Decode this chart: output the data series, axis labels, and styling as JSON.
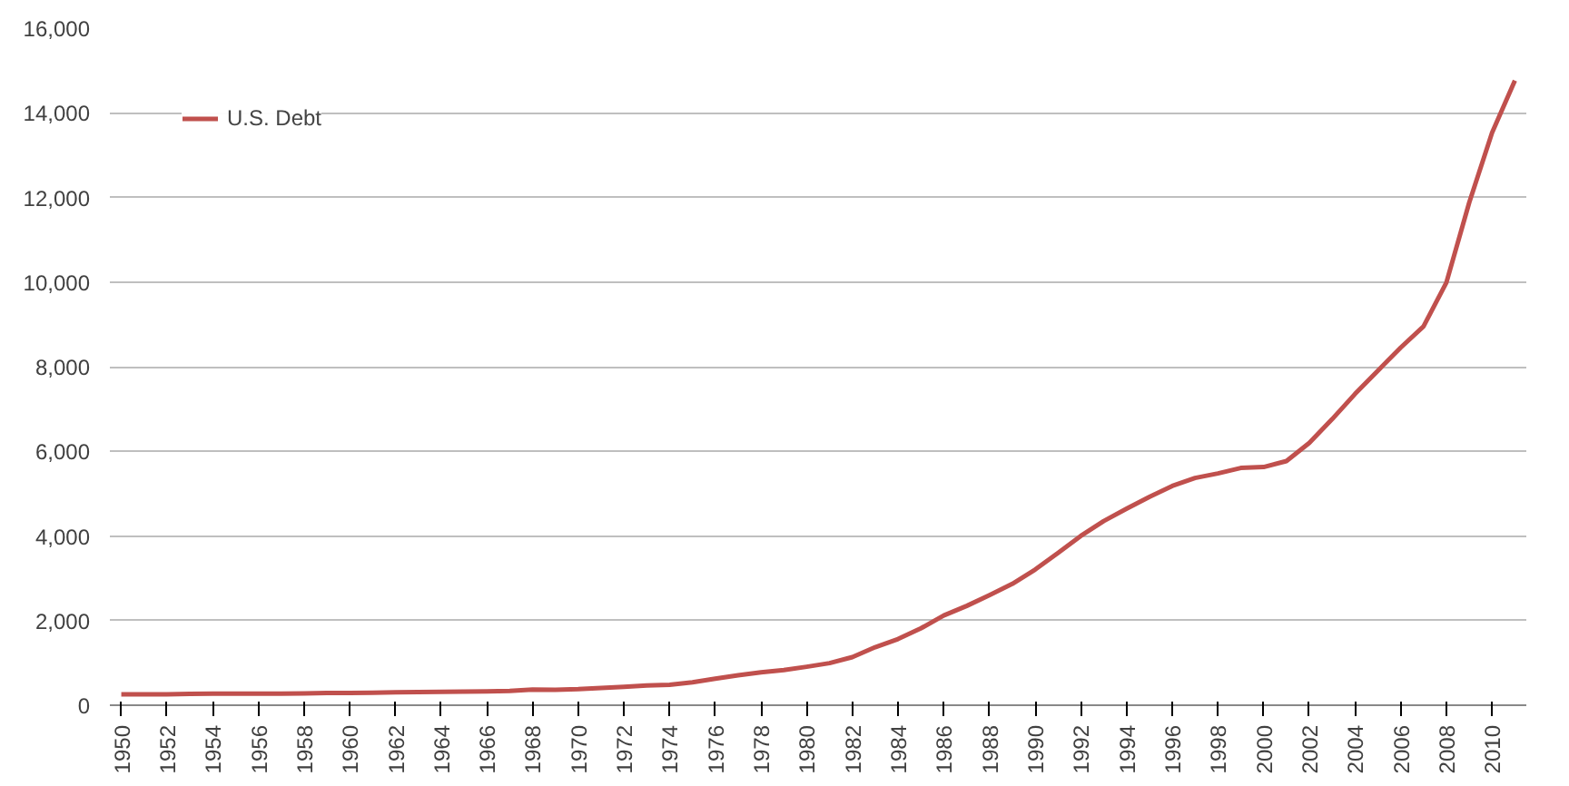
{
  "chart_data": {
    "type": "line",
    "legend": "top left",
    "grid": "y",
    "line_style": "solid",
    "marker": "none",
    "x": [
      1950,
      1951,
      1952,
      1953,
      1954,
      1955,
      1956,
      1957,
      1958,
      1959,
      1960,
      1961,
      1962,
      1963,
      1964,
      1965,
      1966,
      1967,
      1968,
      1969,
      1970,
      1971,
      1972,
      1973,
      1974,
      1975,
      1976,
      1977,
      1978,
      1979,
      1980,
      1981,
      1982,
      1983,
      1984,
      1985,
      1986,
      1987,
      1988,
      1989,
      1990,
      1991,
      1992,
      1993,
      1994,
      1995,
      1996,
      1997,
      1998,
      1999,
      2000,
      2001,
      2002,
      2003,
      2004,
      2005,
      2006,
      2007,
      2008,
      2009,
      2010,
      2011
    ],
    "series": [
      {
        "name": "U.S. Debt",
        "color": "#c0504d",
        "values": [
          257,
          255,
          259,
          266,
          271,
          274,
          273,
          272,
          280,
          287,
          290,
          293,
          303,
          310,
          316,
          322,
          328,
          340,
          368,
          366,
          381,
          408,
          436,
          466,
          484,
          542,
          629,
          706,
          777,
          829,
          909,
          994,
          1137,
          1371,
          1564,
          1817,
          2120,
          2346,
          2601,
          2868,
          3206,
          3598,
          4001,
          4351,
          4643,
          4921,
          5181,
          5369,
          5478,
          5606,
          5629,
          5770,
          6198,
          6760,
          7355,
          7905,
          8451,
          8951,
          9986,
          11876,
          13529,
          14764
        ]
      }
    ],
    "xlim": [
      1949.5,
      2011.5
    ],
    "xticks": [
      1950,
      1952,
      1954,
      1956,
      1958,
      1960,
      1962,
      1964,
      1966,
      1968,
      1970,
      1972,
      1974,
      1976,
      1978,
      1980,
      1982,
      1984,
      1986,
      1988,
      1990,
      1992,
      1994,
      1996,
      1998,
      2000,
      2002,
      2004,
      2006,
      2008,
      2010
    ],
    "ylim": [
      0,
      16000
    ],
    "yticks": [
      {
        "value": 0,
        "label": "0"
      },
      {
        "value": 2000,
        "label": "2,000"
      },
      {
        "value": 4000,
        "label": "4,000"
      },
      {
        "value": 6000,
        "label": "6,000"
      },
      {
        "value": 8000,
        "label": "8,000"
      },
      {
        "value": 10000,
        "label": "10,000"
      },
      {
        "value": 12000,
        "label": "12,000"
      },
      {
        "value": 14000,
        "label": "14,000"
      },
      {
        "value": 16000,
        "label": "16,000"
      }
    ]
  }
}
